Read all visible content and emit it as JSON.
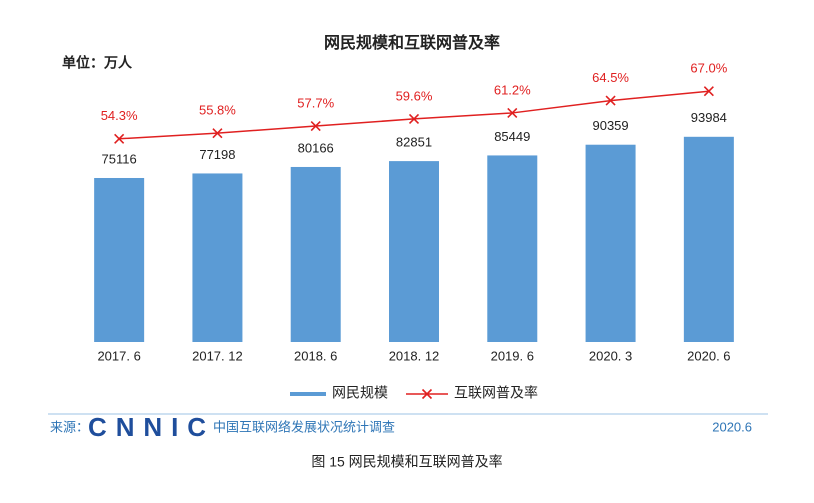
{
  "chart_data": {
    "type": "bar-line",
    "title": "网民规模和互联网普及率",
    "unit_label": "单位：万人",
    "categories": [
      "2017. 6",
      "2017. 12",
      "2018. 6",
      "2018. 12",
      "2019. 6",
      "2020. 3",
      "2020. 6"
    ],
    "series": [
      {
        "name": "网民规模",
        "color": "#5b9bd5",
        "values": [
          75116,
          77198,
          80166,
          82851,
          85449,
          90359,
          93984
        ]
      },
      {
        "name": "互联网普及率",
        "color": "#e02020",
        "axis": "y2",
        "values": [
          54.3,
          55.8,
          57.7,
          59.6,
          61.2,
          64.5,
          67.0
        ],
        "value_labels": [
          "54.3%",
          "55.8%",
          "57.7%",
          "59.6%",
          "61.2%",
          "64.5%",
          "67.0%"
        ]
      }
    ],
    "ylim": [
      0,
      120000
    ],
    "y2lim": [
      0,
      70
    ],
    "grid": false
  },
  "footer": {
    "source_label": "来源：",
    "logo": "CNNIC",
    "org": "中国互联网络发展状况统计调查",
    "date": "2020.6"
  },
  "caption": "图 15   网民规模和互联网普及率"
}
